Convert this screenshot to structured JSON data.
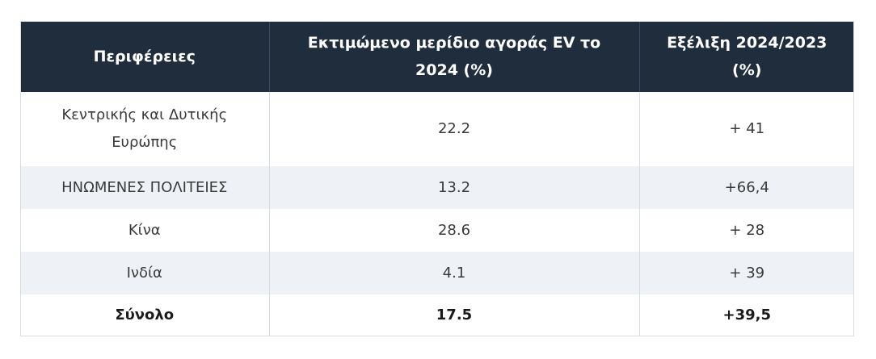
{
  "table": {
    "headers": [
      "Περιφέρειες",
      "Εκτιμώμενο μερίδιο αγοράς EV το 2024 (%)",
      "Εξέλιξη 2024/2023 (%)"
    ],
    "rows": [
      [
        "Κεντρικής και Δυτικής Ευρώπης",
        "22.2",
        "+ 41"
      ],
      [
        "ΗΝΩΜΕΝΕΣ ΠΟΛΙΤΕΙΕΣ",
        "13.2",
        "+66,4"
      ],
      [
        "Κίνα",
        "28.6",
        "+ 28"
      ],
      [
        "Ινδία",
        "4.1",
        "+ 39"
      ]
    ],
    "total": [
      "Σύνολο",
      "17.5",
      "+39,5"
    ]
  },
  "colors": {
    "header_bg": "#1f2d3d",
    "header_text": "#ffffff",
    "stripe_bg": "#eef2f6",
    "border": "#d8dde2"
  }
}
